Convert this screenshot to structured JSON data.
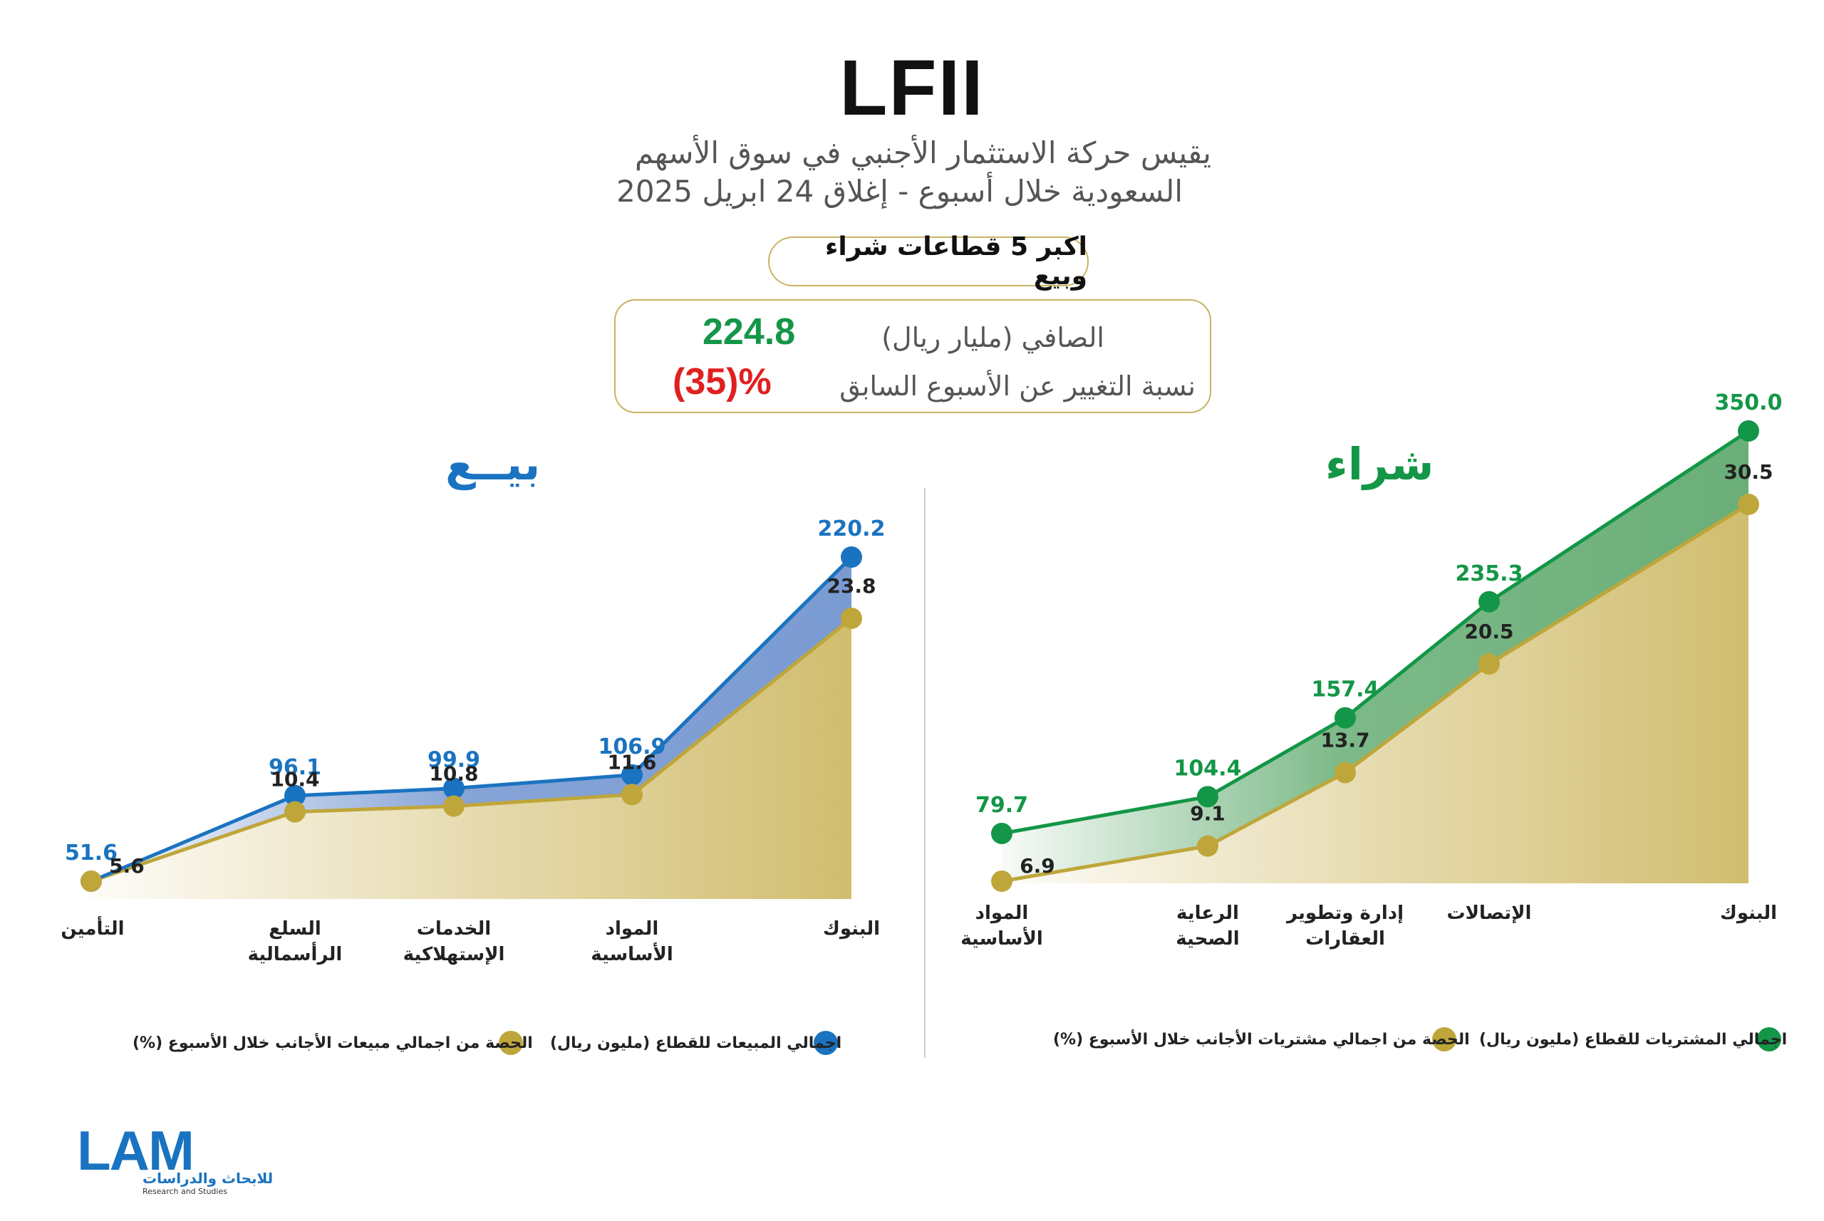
{
  "header": {
    "title": "LFII",
    "subtitle_line1": "يقيس حركة الاستثمار الأجنبي في سوق الأسهم",
    "subtitle_line2": "السعودية خلال أسبوع - إغلاق  24 ابريل 2025"
  },
  "pill_label": "اكبر 5 قطاعات شراء وبيع",
  "summary": {
    "net_label": "الصافي (مليار ريال)",
    "net_value": "224.8",
    "change_label": "نسبة التغيير عن الأسبوع السابق",
    "change_value": "(35)%"
  },
  "colors": {
    "buy_green": "#139647",
    "sell_blue": "#1a73c0",
    "gold": "#bfa63a",
    "change_red": "#e02020"
  },
  "chart_data": [
    {
      "panel": "sell",
      "title": "بيــع",
      "type": "area",
      "categories": [
        [
          "التأمين"
        ],
        [
          "السلع",
          "الرأسمالية"
        ],
        [
          "الخدمات",
          "الإستهلاكية"
        ],
        [
          "المواد",
          "الأساسية"
        ],
        [
          "البنوك"
        ]
      ],
      "series": [
        {
          "name": "اجمالي المبيعات للقطاع (مليون ريال)",
          "values": [
            51.6,
            96.1,
            99.9,
            106.9,
            220.2
          ],
          "labels": [
            "51.6",
            "96.1",
            "99.9",
            "106.9",
            "220.2"
          ]
        },
        {
          "name": "الحصة من اجمالي مبيعات الأجانب خلال الأسبوع (%)",
          "values": [
            5.6,
            10.4,
            10.8,
            11.6,
            23.8
          ],
          "labels": [
            "5.6",
            "10.4",
            "10.8",
            "11.6",
            "23.8"
          ]
        }
      ]
    },
    {
      "panel": "buy",
      "title": "شراء",
      "type": "area",
      "categories": [
        [
          "المواد",
          "الأساسية"
        ],
        [
          "الرعاية",
          "الصحية"
        ],
        [
          "إدارة وتطوير",
          "العقارات"
        ],
        [
          "الإتصالات"
        ],
        [
          "البنوك"
        ]
      ],
      "series": [
        {
          "name": "اجمالي المشتريات للقطاع (مليون ريال)",
          "values": [
            79.7,
            104.4,
            157.4,
            235.3,
            350.0
          ],
          "labels": [
            "79.7",
            "104.4",
            "157.4",
            "235.3",
            "350.0"
          ]
        },
        {
          "name": "الحصة من اجمالي مشتريات الأجانب خلال الأسبوع (%)",
          "values": [
            6.9,
            9.1,
            13.7,
            20.5,
            30.5
          ],
          "labels": [
            "6.9",
            "9.1",
            "13.7",
            "20.5",
            "30.5"
          ]
        }
      ]
    }
  ],
  "logo": {
    "name": "LAM",
    "arabic": "للابحاث والدراسات",
    "english": "Research and Studies"
  }
}
